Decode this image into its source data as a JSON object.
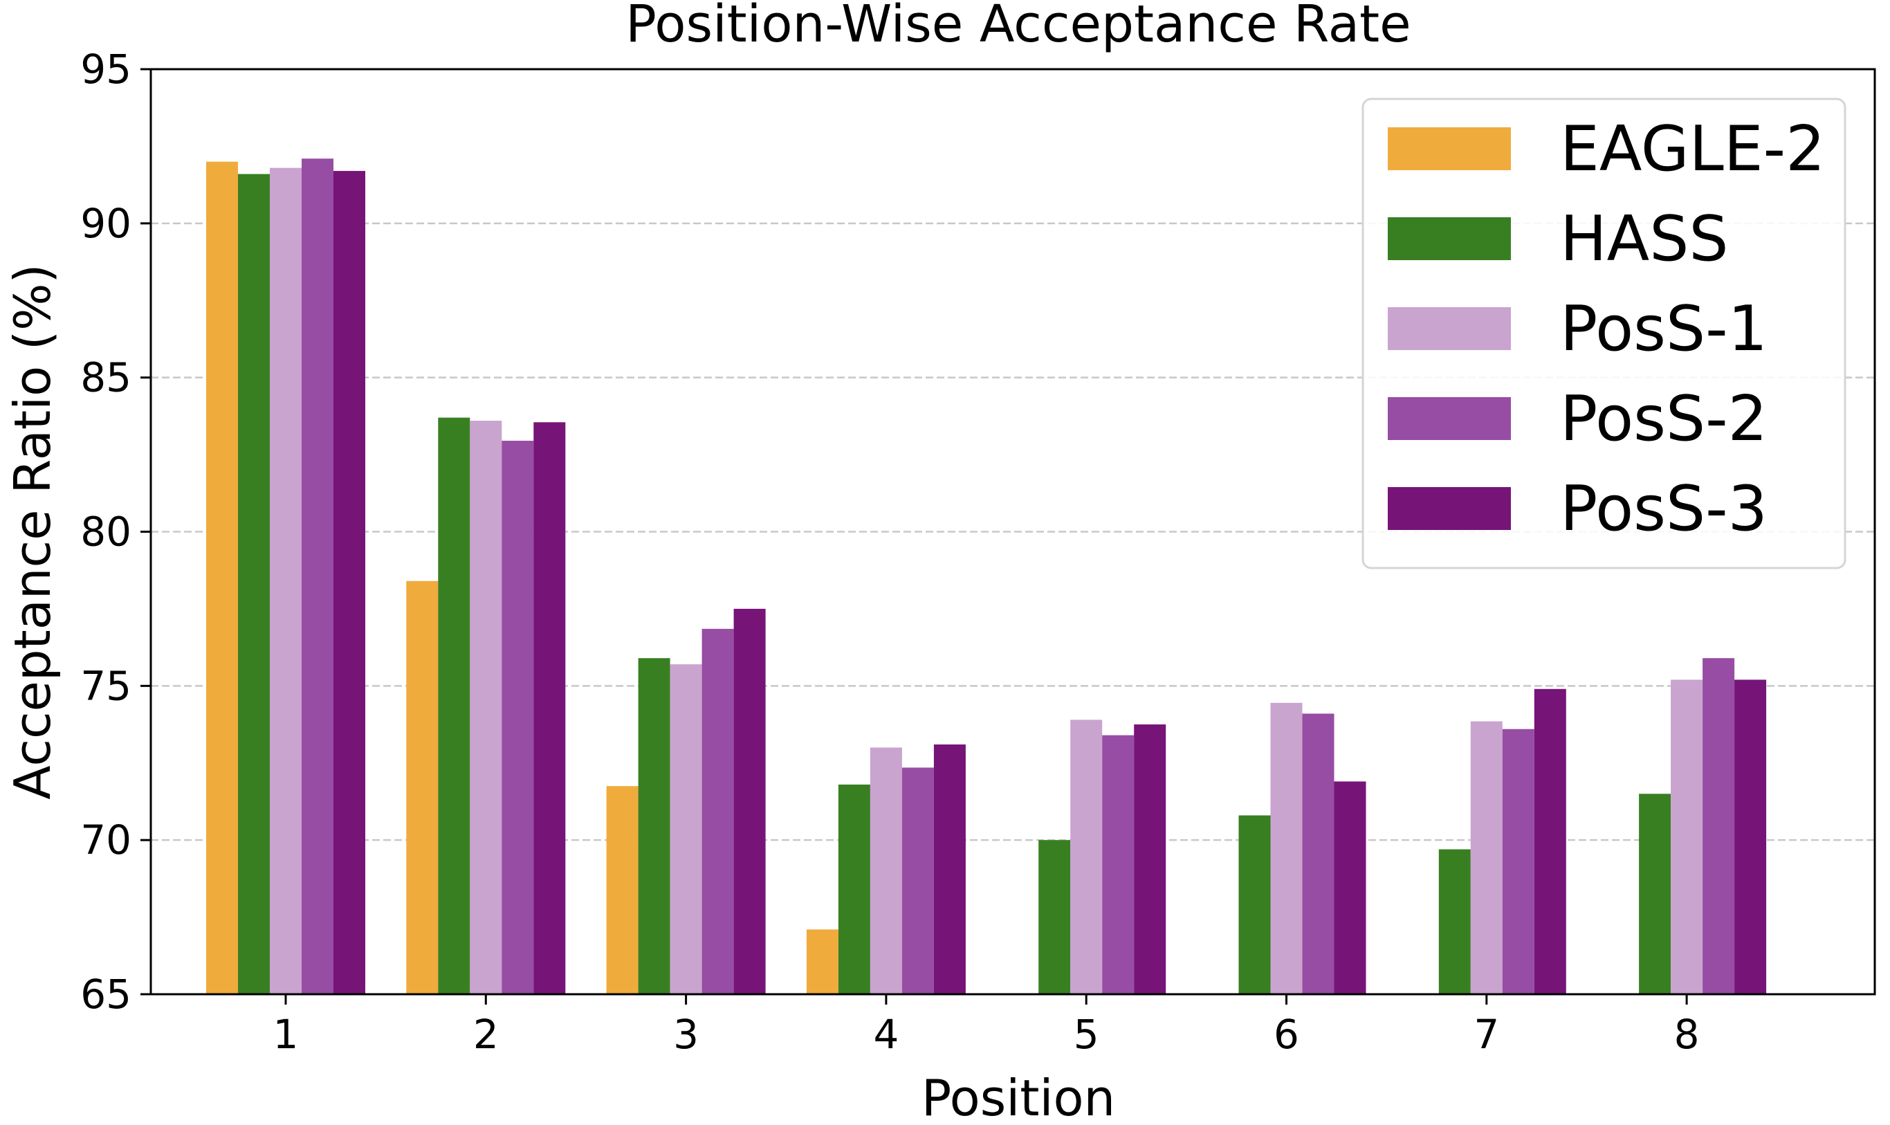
{
  "chart_data": {
    "type": "bar",
    "title": "Position-Wise Acceptance Rate",
    "xlabel": "Position",
    "ylabel": "Acceptance Ratio (%)",
    "categories": [
      "1",
      "2",
      "3",
      "4",
      "5",
      "6",
      "7",
      "8"
    ],
    "ylim": [
      65,
      95
    ],
    "yticks": [
      "65",
      "70",
      "75",
      "80",
      "85",
      "90",
      "95"
    ],
    "grid": "y-dashed",
    "legend_position": "top-right",
    "series": [
      {
        "name": "EAGLE-2",
        "color": "#F0AB3D",
        "values": [
          92.0,
          78.4,
          71.75,
          67.1,
          null,
          null,
          null,
          null
        ]
      },
      {
        "name": "HASS",
        "color": "#387F22",
        "values": [
          91.6,
          83.7,
          75.9,
          71.8,
          70.0,
          70.8,
          69.7,
          71.5
        ]
      },
      {
        "name": "PosS-1",
        "color": "#C9A4CF",
        "values": [
          91.8,
          83.6,
          75.7,
          73.0,
          73.9,
          74.45,
          73.85,
          75.2
        ]
      },
      {
        "name": "PosS-2",
        "color": "#974DA3",
        "values": [
          92.1,
          82.95,
          76.85,
          72.35,
          73.4,
          74.1,
          73.6,
          75.9
        ]
      },
      {
        "name": "PosS-3",
        "color": "#761478",
        "values": [
          91.7,
          83.55,
          77.5,
          73.1,
          73.75,
          71.9,
          74.9,
          75.2
        ]
      }
    ]
  }
}
